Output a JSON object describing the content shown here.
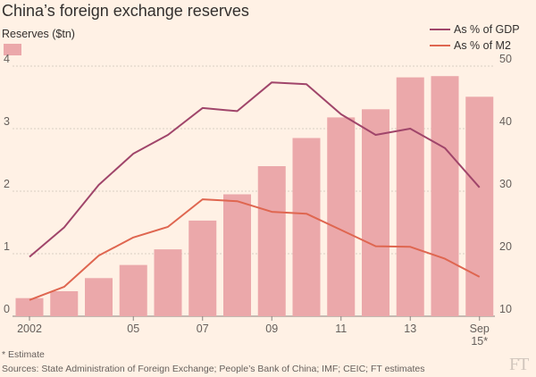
{
  "chart_data": {
    "type": "bar+line",
    "title": "China’s foreign exchange reserves",
    "left_axis_label": "Reserves ($tn)",
    "left_ylim": [
      0,
      4
    ],
    "left_ticks": [
      "0",
      "1",
      "2",
      "3",
      "4"
    ],
    "right_ylim": [
      10,
      50
    ],
    "right_ticks": [
      "10",
      "20",
      "30",
      "40",
      "50"
    ],
    "categories": [
      "2002",
      "2003",
      "2004",
      "2005",
      "2006",
      "2007",
      "2008",
      "2009",
      "2010",
      "2011",
      "2012",
      "2013",
      "2014",
      "Sep 15*"
    ],
    "x_tick_labels": [
      {
        "index": 0,
        "label": "2002"
      },
      {
        "index": 3,
        "label": "05"
      },
      {
        "index": 5,
        "label": "07"
      },
      {
        "index": 7,
        "label": "09"
      },
      {
        "index": 9,
        "label": "11"
      },
      {
        "index": 11,
        "label": "13"
      },
      {
        "index": 13,
        "label": "Sep"
      }
    ],
    "x_tick_sublabel": "15*",
    "series": [
      {
        "name": "Reserves ($tn)",
        "type": "bar",
        "axis": "left",
        "color": "#eba8aa",
        "values": [
          0.29,
          0.4,
          0.61,
          0.82,
          1.07,
          1.53,
          1.95,
          2.4,
          2.85,
          3.18,
          3.31,
          3.82,
          3.84,
          3.51
        ]
      },
      {
        "name": "As % of GDP",
        "type": "line",
        "axis": "right",
        "color": "#a0456a",
        "values": [
          19.5,
          24.2,
          31.0,
          36.0,
          39.0,
          43.3,
          42.8,
          47.4,
          47.1,
          42.3,
          39.0,
          40.0,
          36.9,
          30.6
        ]
      },
      {
        "name": "As % of M2",
        "type": "line",
        "axis": "right",
        "color": "#df6650",
        "values": [
          12.6,
          14.7,
          19.7,
          22.6,
          24.3,
          28.7,
          28.4,
          26.7,
          26.4,
          23.8,
          21.2,
          21.1,
          19.2,
          16.3
        ]
      }
    ]
  },
  "footnote": "* Estimate",
  "sources": "Sources: State Administration of Foreign Exchange; People’s Bank of China; IMF; CEIC; FT estimates",
  "brand": "FT"
}
